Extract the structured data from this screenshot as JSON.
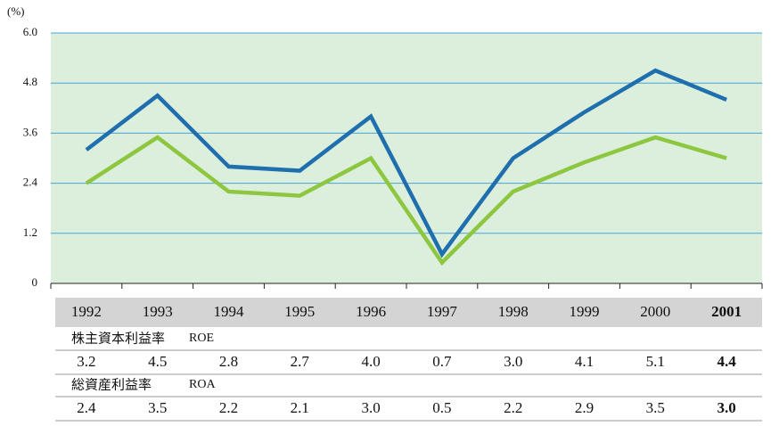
{
  "chart_data": {
    "type": "line",
    "y_label": "(%)",
    "categories": [
      "1992",
      "1993",
      "1994",
      "1995",
      "1996",
      "1997",
      "1998",
      "1999",
      "2000",
      "2001"
    ],
    "series": [
      {
        "name": "株主資本利益率",
        "abbr": "ROE",
        "color": "#1f6fae",
        "values": [
          3.2,
          4.5,
          2.8,
          2.7,
          4.0,
          0.7,
          3.0,
          4.1,
          5.1,
          4.4
        ],
        "value_labels": [
          "3.2",
          "4.5",
          "2.8",
          "2.7",
          "4.0",
          "0.7",
          "3.0",
          "4.1",
          "5.1",
          "4.4"
        ]
      },
      {
        "name": "総資産利益率",
        "abbr": "ROA",
        "color": "#8dc63f",
        "values": [
          2.4,
          3.5,
          2.2,
          2.1,
          3.0,
          0.5,
          2.2,
          2.9,
          3.5,
          3.0
        ],
        "value_labels": [
          "2.4",
          "3.5",
          "2.2",
          "2.1",
          "3.0",
          "0.5",
          "2.2",
          "2.9",
          "3.5",
          "3.0"
        ]
      }
    ],
    "ylim": [
      0,
      6
    ],
    "yticks": [
      0,
      {
        "value": 1.2,
        "label": "1.2"
      },
      {
        "value": 2.4,
        "label": "2.4"
      },
      {
        "value": 3.6,
        "label": "3.6"
      },
      {
        "value": 4.8,
        "label": "4.8"
      },
      {
        "value": 6,
        "label": "6.0"
      }
    ],
    "grid": true,
    "grid_color": "#4aa3d8",
    "plot_background": "#dcefdc",
    "highlight_color": "#1f6fae"
  }
}
